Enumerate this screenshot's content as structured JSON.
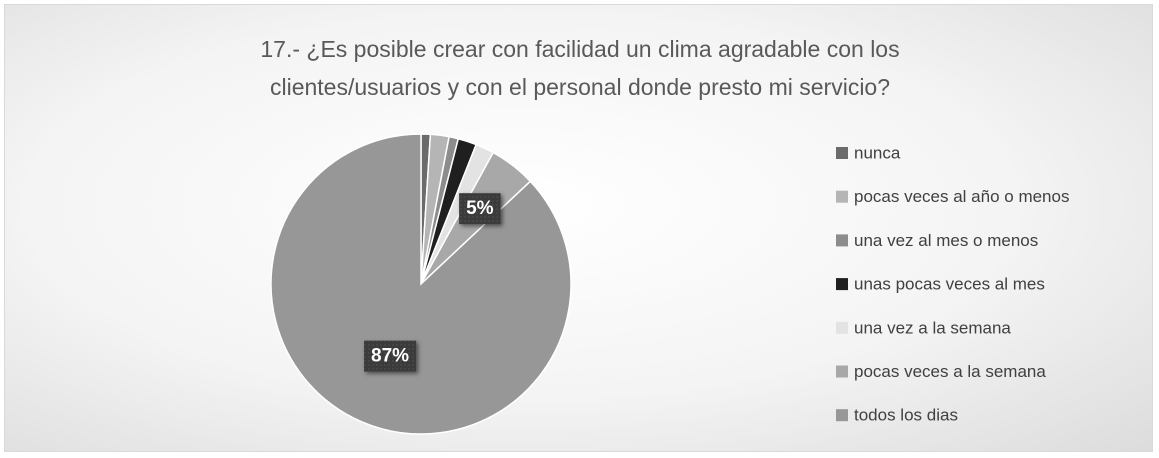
{
  "chart_data": {
    "type": "pie",
    "title": "17.- ¿Es posible crear con facilidad un clima agradable con los clientes/usuarios y con el personal donde presto mi servicio?",
    "categories": [
      "nunca",
      "pocas veces al año o menos",
      "una vez al mes o menos",
      "unas pocas veces al mes",
      "una vez a la semana",
      "pocas veces a la semana",
      "todos los dias"
    ],
    "values": [
      1,
      2,
      1,
      2,
      2,
      5,
      87
    ],
    "value_labels": [
      null,
      null,
      null,
      null,
      null,
      "5%",
      "87%"
    ],
    "colors": [
      "#6b6b6b",
      "#b5b5b5",
      "#8c8c8c",
      "#1f1f1f",
      "#e3e3e3",
      "#a8a8a8",
      "#979797"
    ],
    "legend": "right"
  }
}
